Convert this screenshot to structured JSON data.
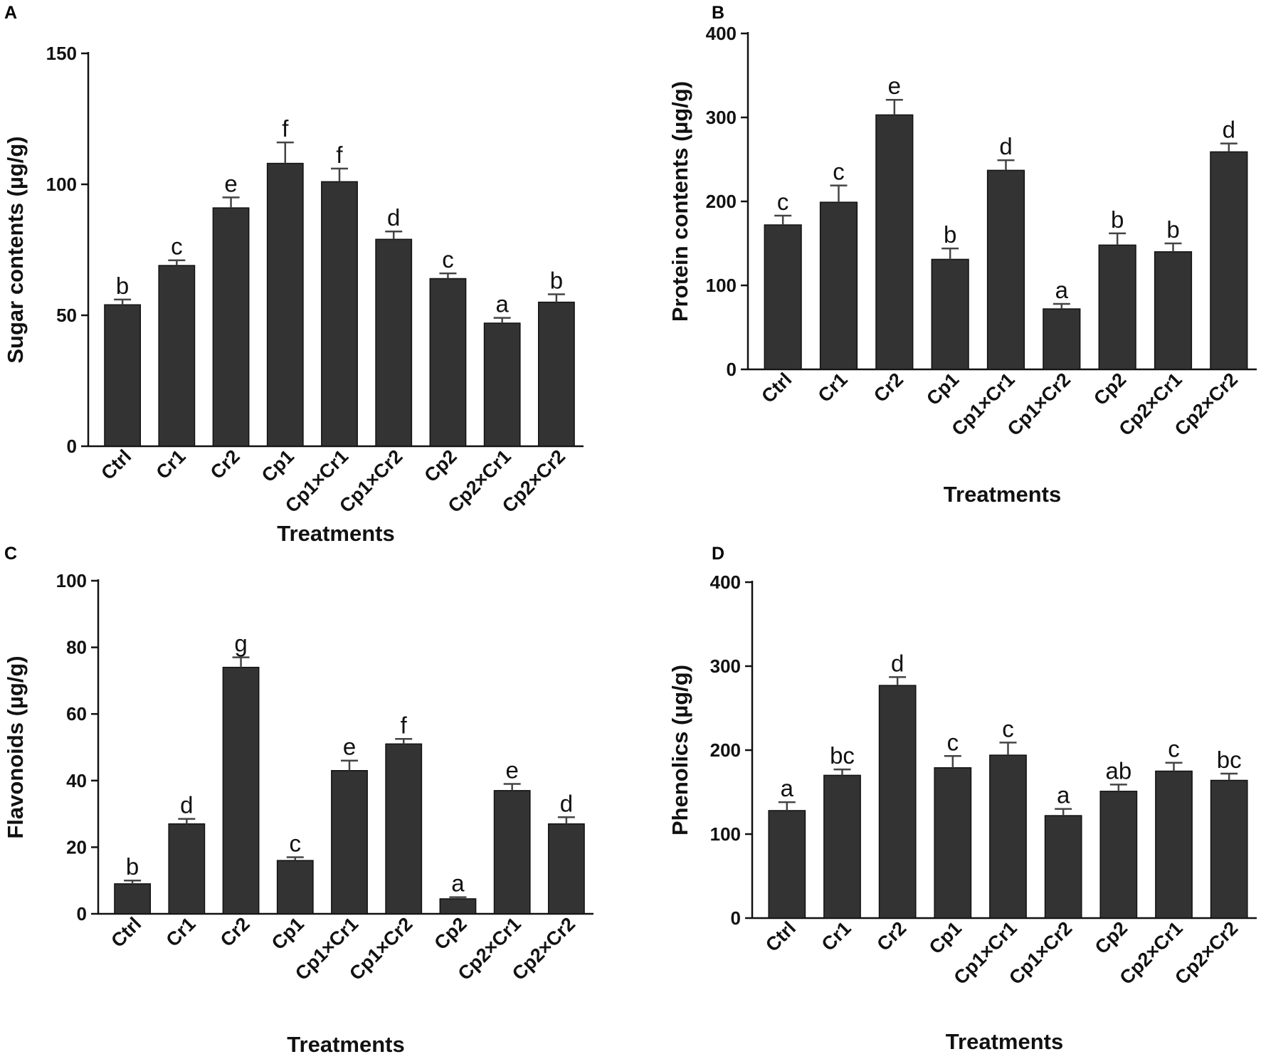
{
  "chart_data": [
    {
      "panel": "A",
      "type": "bar",
      "categories": [
        "Ctrl",
        "Cr1",
        "Cr2",
        "Cp1",
        "Cp1×Cr1",
        "Cp1×Cr2",
        "Cp2",
        "Cp2×Cr1",
        "Cp2×Cr2"
      ],
      "values": [
        54,
        69,
        91,
        108,
        101,
        79,
        64,
        47,
        55
      ],
      "errors": [
        2,
        2,
        4,
        8,
        5,
        3,
        2,
        2,
        3
      ],
      "letters": [
        "b",
        "c",
        "e",
        "f",
        "f",
        "d",
        "c",
        "a",
        "b"
      ],
      "xlabel": "Treatments",
      "ylabel": "Sugar contents (µg/g)",
      "ylim": [
        0,
        150
      ],
      "yticks": [
        0,
        50,
        100,
        150
      ]
    },
    {
      "panel": "B",
      "type": "bar",
      "categories": [
        "Ctrl",
        "Cr1",
        "Cr2",
        "Cp1",
        "Cp1×Cr1",
        "Cp1×Cr2",
        "Cp2",
        "Cp2×Cr1",
        "Cp2×Cr2"
      ],
      "values": [
        172,
        199,
        303,
        131,
        237,
        72,
        148,
        140,
        259
      ],
      "errors": [
        11,
        20,
        18,
        13,
        12,
        6,
        14,
        10,
        10
      ],
      "letters": [
        "c",
        "c",
        "e",
        "b",
        "d",
        "a",
        "b",
        "b",
        "d"
      ],
      "xlabel": "Treatments",
      "ylabel": "Protein contents (µg/g)",
      "ylim": [
        0,
        400
      ],
      "yticks": [
        0,
        100,
        200,
        300,
        400
      ]
    },
    {
      "panel": "C",
      "type": "bar",
      "categories": [
        "Ctrl",
        "Cr1",
        "Cr2",
        "Cp1",
        "Cp1×Cr1",
        "Cp1×Cr2",
        "Cp2",
        "Cp2×Cr1",
        "Cp2×Cr2"
      ],
      "values": [
        9,
        27,
        74,
        16,
        43,
        51,
        4.5,
        37,
        27
      ],
      "errors": [
        1,
        1.5,
        3,
        1,
        3,
        1.5,
        0.5,
        2,
        2
      ],
      "letters": [
        "b",
        "d",
        "g",
        "c",
        "e",
        "f",
        "a",
        "e",
        "d"
      ],
      "xlabel": "Treatments",
      "ylabel": "Flavonoids (µg/g)",
      "ylim": [
        0,
        100
      ],
      "yticks": [
        0,
        20,
        40,
        60,
        80,
        100
      ]
    },
    {
      "panel": "D",
      "type": "bar",
      "categories": [
        "Ctrl",
        "Cr1",
        "Cr2",
        "Cp1",
        "Cp1×Cr1",
        "Cp1×Cr2",
        "Cp2",
        "Cp2×Cr1",
        "Cp2×Cr2"
      ],
      "values": [
        128,
        170,
        277,
        179,
        194,
        122,
        151,
        175,
        164
      ],
      "errors": [
        10,
        7,
        10,
        14,
        15,
        8,
        8,
        10,
        8
      ],
      "letters": [
        "a",
        "bc",
        "d",
        "c",
        "c",
        "a",
        "ab",
        "c",
        "bc"
      ],
      "xlabel": "Treatments",
      "ylabel": "Phenolics (µg/g)",
      "ylim": [
        0,
        400
      ],
      "yticks": [
        0,
        100,
        200,
        300,
        400
      ]
    }
  ],
  "colors": {
    "bar": "#333333",
    "axis": "#111111",
    "error": "#444444"
  }
}
